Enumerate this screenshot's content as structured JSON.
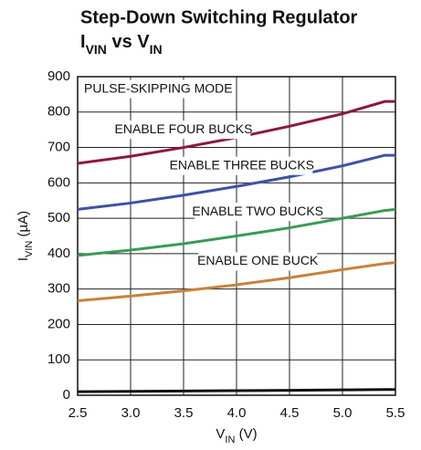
{
  "chart_data": {
    "type": "line",
    "title": "Step-Down Switching Regulator",
    "subtitle": [
      "I",
      "VIN",
      " vs V",
      "IN"
    ],
    "x_label": [
      "V",
      "IN",
      " (V)"
    ],
    "y_label": [
      "I",
      "VIN",
      " (µA)"
    ],
    "annotation": "PULSE-SKIPPING MODE",
    "x": [
      2.5,
      3.0,
      3.5,
      4.0,
      4.5,
      5.0,
      5.4,
      5.5
    ],
    "series": [
      {
        "name": "ENABLE FOUR BUCKS",
        "color": "#8b1a3c",
        "values": [
          655,
          675,
          700,
          728,
          760,
          795,
          830,
          830
        ]
      },
      {
        "name": "ENABLE THREE BUCKS",
        "color": "#3f51a3",
        "values": [
          525,
          543,
          565,
          590,
          617,
          648,
          678,
          678
        ]
      },
      {
        "name": "ENABLE TWO BUCKS",
        "color": "#3a9a55",
        "values": [
          395,
          410,
          428,
          450,
          473,
          500,
          522,
          525
        ]
      },
      {
        "name": "ENABLE ONE BUCK",
        "color": "#c8823a",
        "values": [
          267,
          280,
          295,
          312,
          332,
          355,
          372,
          375
        ]
      },
      {
        "color": "#111111",
        "values": [
          10,
          11,
          12,
          13,
          14,
          15,
          16,
          16
        ]
      }
    ],
    "xlim": [
      2.5,
      5.5
    ],
    "xticks": [
      {
        "value": 2.5,
        "label": "2.5"
      },
      {
        "value": 3,
        "label": "3.0"
      },
      {
        "value": 3.5,
        "label": "3.5"
      },
      {
        "value": 4,
        "label": "4.0"
      },
      {
        "value": 4.5,
        "label": "4.5"
      },
      {
        "value": 5,
        "label": "5.0"
      },
      {
        "value": 5.5,
        "label": "5.5"
      }
    ],
    "ylim": [
      0,
      900
    ],
    "yticks": [
      0,
      100,
      200,
      300,
      400,
      500,
      600,
      700,
      800,
      900
    ],
    "grid": true
  }
}
